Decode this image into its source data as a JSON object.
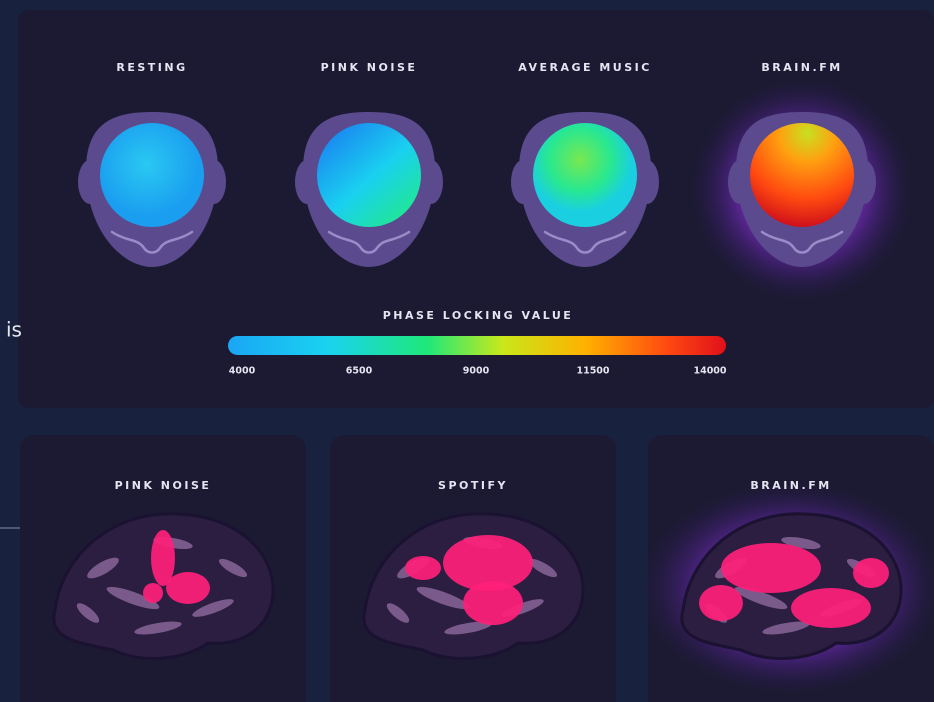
{
  "side_text": "is",
  "top_panel": {
    "heads": [
      {
        "label": "RESTING"
      },
      {
        "label": "PINK NOISE"
      },
      {
        "label": "AVERAGE MUSIC"
      },
      {
        "label": "BRAIN.FM"
      }
    ],
    "colorbar": {
      "title": "PHASE LOCKING VALUE",
      "ticks": [
        "4000",
        "6500",
        "9000",
        "11500",
        "14000"
      ]
    }
  },
  "bottom_panels": [
    {
      "label": "PINK NOISE"
    },
    {
      "label": "SPOTIFY"
    },
    {
      "label": "BRAIN.FM"
    }
  ]
}
